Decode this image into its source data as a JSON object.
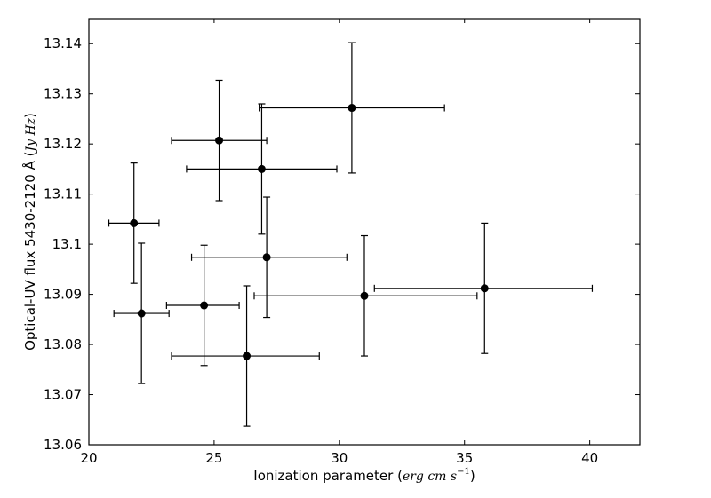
{
  "chart_data": {
    "type": "scatter",
    "xlabel": {
      "text": "Ionization parameter",
      "unit_open": "(",
      "unit_math": "erg cm s",
      "unit_exp": "−1",
      "unit_close": ")"
    },
    "ylabel": {
      "text": "Optical-UV flux 5430-2120 Å",
      "unit_open": "(",
      "unit_math": "Jy Hz",
      "unit_close": ")"
    },
    "xlim": [
      20,
      42
    ],
    "ylim": [
      13.06,
      13.145
    ],
    "xticks": [
      20,
      25,
      30,
      35,
      40
    ],
    "xtick_labels": [
      "20",
      "25",
      "30",
      "35",
      "40"
    ],
    "yticks": [
      13.06,
      13.07,
      13.08,
      13.09,
      13.1,
      13.11,
      13.12,
      13.13,
      13.14
    ],
    "ytick_labels": [
      "13.06",
      "13.07",
      "13.08",
      "13.09",
      "13.1",
      "13.11",
      "13.12",
      "13.13",
      "13.14"
    ],
    "grid": false,
    "marker_color": "#000000",
    "points": [
      {
        "x": 21.8,
        "y": 13.1042,
        "x_lo": 20.8,
        "x_hi": 22.8,
        "y_lo": 13.0922,
        "y_hi": 13.1162
      },
      {
        "x": 22.1,
        "y": 13.0862,
        "x_lo": 21.0,
        "x_hi": 23.2,
        "y_lo": 13.0722,
        "y_hi": 13.1002
      },
      {
        "x": 24.6,
        "y": 13.0878,
        "x_lo": 23.1,
        "x_hi": 26.0,
        "y_lo": 13.0758,
        "y_hi": 13.0998
      },
      {
        "x": 25.2,
        "y": 13.1207,
        "x_lo": 23.3,
        "x_hi": 27.1,
        "y_lo": 13.1087,
        "y_hi": 13.1327
      },
      {
        "x": 26.3,
        "y": 13.0777,
        "x_lo": 23.3,
        "x_hi": 29.2,
        "y_lo": 13.0637,
        "y_hi": 13.0917
      },
      {
        "x": 26.9,
        "y": 13.115,
        "x_lo": 23.9,
        "x_hi": 29.9,
        "y_lo": 13.102,
        "y_hi": 13.128
      },
      {
        "x": 27.1,
        "y": 13.0974,
        "x_lo": 24.1,
        "x_hi": 30.3,
        "y_lo": 13.0854,
        "y_hi": 13.1094
      },
      {
        "x": 30.5,
        "y": 13.1272,
        "x_lo": 26.8,
        "x_hi": 34.2,
        "y_lo": 13.1142,
        "y_hi": 13.1402
      },
      {
        "x": 31.0,
        "y": 13.0897,
        "x_lo": 26.6,
        "x_hi": 35.5,
        "y_lo": 13.0777,
        "y_hi": 13.1017
      },
      {
        "x": 35.8,
        "y": 13.0912,
        "x_lo": 31.4,
        "x_hi": 40.1,
        "y_lo": 13.0782,
        "y_hi": 13.1042
      }
    ]
  }
}
